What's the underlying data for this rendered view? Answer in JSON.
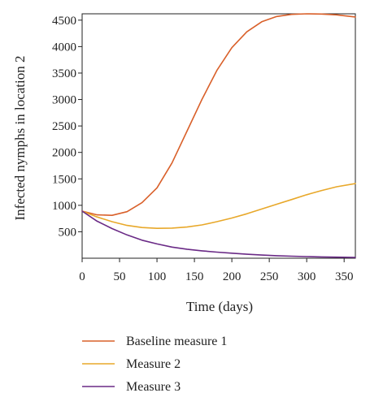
{
  "chart_data": {
    "type": "line",
    "title": "",
    "xlabel": "Time (days)",
    "ylabel": "Infected nymphs in location 2",
    "xlim": [
      0,
      365
    ],
    "ylim": [
      0,
      4620
    ],
    "xticks": [
      0,
      50,
      100,
      150,
      200,
      250,
      300,
      350
    ],
    "yticks": [
      500,
      1000,
      1500,
      2000,
      2500,
      3000,
      3500,
      4000,
      4500
    ],
    "grid": false,
    "legend_position": "bottom",
    "series": [
      {
        "name": "Baseline measure 1",
        "color": "#d9602a",
        "x": [
          0,
          20,
          40,
          60,
          80,
          100,
          120,
          140,
          160,
          180,
          200,
          220,
          240,
          260,
          280,
          300,
          320,
          340,
          365
        ],
        "values": [
          890,
          820,
          810,
          880,
          1050,
          1330,
          1800,
          2400,
          3000,
          3550,
          3980,
          4280,
          4470,
          4570,
          4610,
          4620,
          4615,
          4600,
          4560
        ]
      },
      {
        "name": "Measure 2",
        "color": "#e8a82a",
        "x": [
          0,
          20,
          40,
          60,
          80,
          100,
          120,
          140,
          160,
          180,
          200,
          220,
          240,
          260,
          280,
          300,
          320,
          340,
          365
        ],
        "values": [
          890,
          780,
          690,
          620,
          580,
          565,
          570,
          590,
          630,
          690,
          760,
          840,
          930,
          1020,
          1110,
          1200,
          1280,
          1350,
          1410
        ]
      },
      {
        "name": "Measure 3",
        "color": "#6a2a86",
        "x": [
          0,
          20,
          40,
          60,
          80,
          100,
          120,
          140,
          160,
          180,
          200,
          220,
          240,
          260,
          280,
          300,
          320,
          340,
          365
        ],
        "values": [
          890,
          700,
          560,
          440,
          340,
          270,
          210,
          170,
          140,
          115,
          95,
          75,
          60,
          48,
          38,
          30,
          25,
          20,
          15
        ]
      }
    ]
  }
}
